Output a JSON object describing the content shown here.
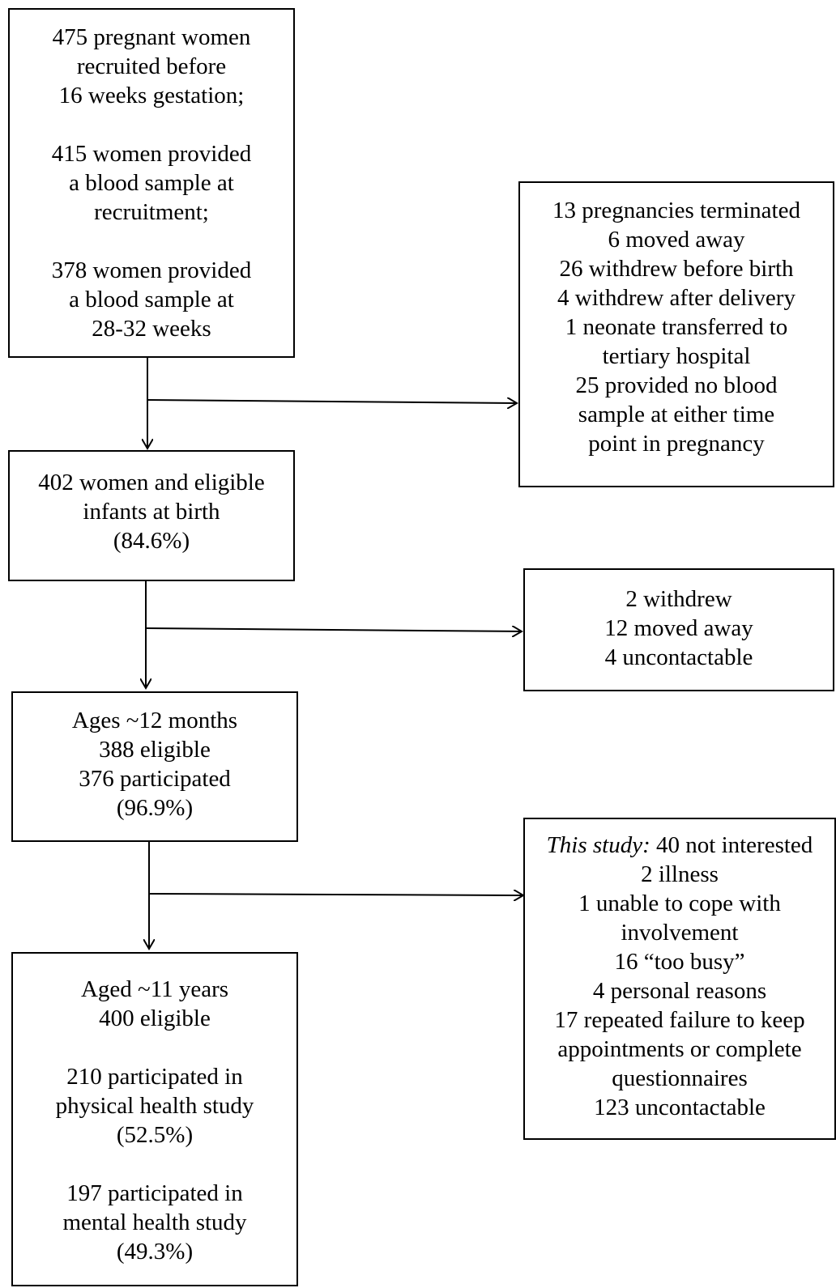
{
  "boxes": {
    "recruitment": {
      "groups": [
        [
          "475 pregnant women",
          "recruited before",
          "16 weeks gestation;"
        ],
        [
          "415 women provided",
          "a blood sample at",
          "recruitment;"
        ],
        [
          "378 women provided",
          "a blood sample at",
          "28-32 weeks"
        ]
      ]
    },
    "exclusion1": {
      "lines": [
        "13 pregnancies terminated",
        "6 moved away",
        "26 withdrew before birth",
        "4 withdrew after delivery",
        "1 neonate transferred to",
        "tertiary hospital",
        "25 provided no blood",
        "sample at either time",
        "point in pregnancy"
      ]
    },
    "birth": {
      "lines": [
        "402 women and eligible",
        "infants at birth",
        "(84.6%)"
      ]
    },
    "exclusion2": {
      "lines": [
        "2 withdrew",
        "12 moved away",
        "4 uncontactable"
      ]
    },
    "twelve_months": {
      "lines": [
        "Ages ~12 months",
        "388 eligible",
        "376 participated",
        "(96.9%)"
      ]
    },
    "exclusion3": {
      "first_line_italic": "This study:",
      "first_line_rest": " 40 not interested",
      "lines": [
        "2 illness",
        "1 unable to cope with",
        "involvement",
        "16 “too busy”",
        "4 personal reasons",
        "17 repeated failure to keep",
        "appointments or complete",
        "questionnaires",
        "123 uncontactable"
      ]
    },
    "eleven_years": {
      "groups": [
        [
          "Aged ~11 years",
          "400 eligible"
        ],
        [
          "210 participated in",
          "physical health study",
          "(52.5%)"
        ],
        [
          "197 participated in",
          "mental health study",
          "(49.3%)"
        ]
      ]
    }
  }
}
